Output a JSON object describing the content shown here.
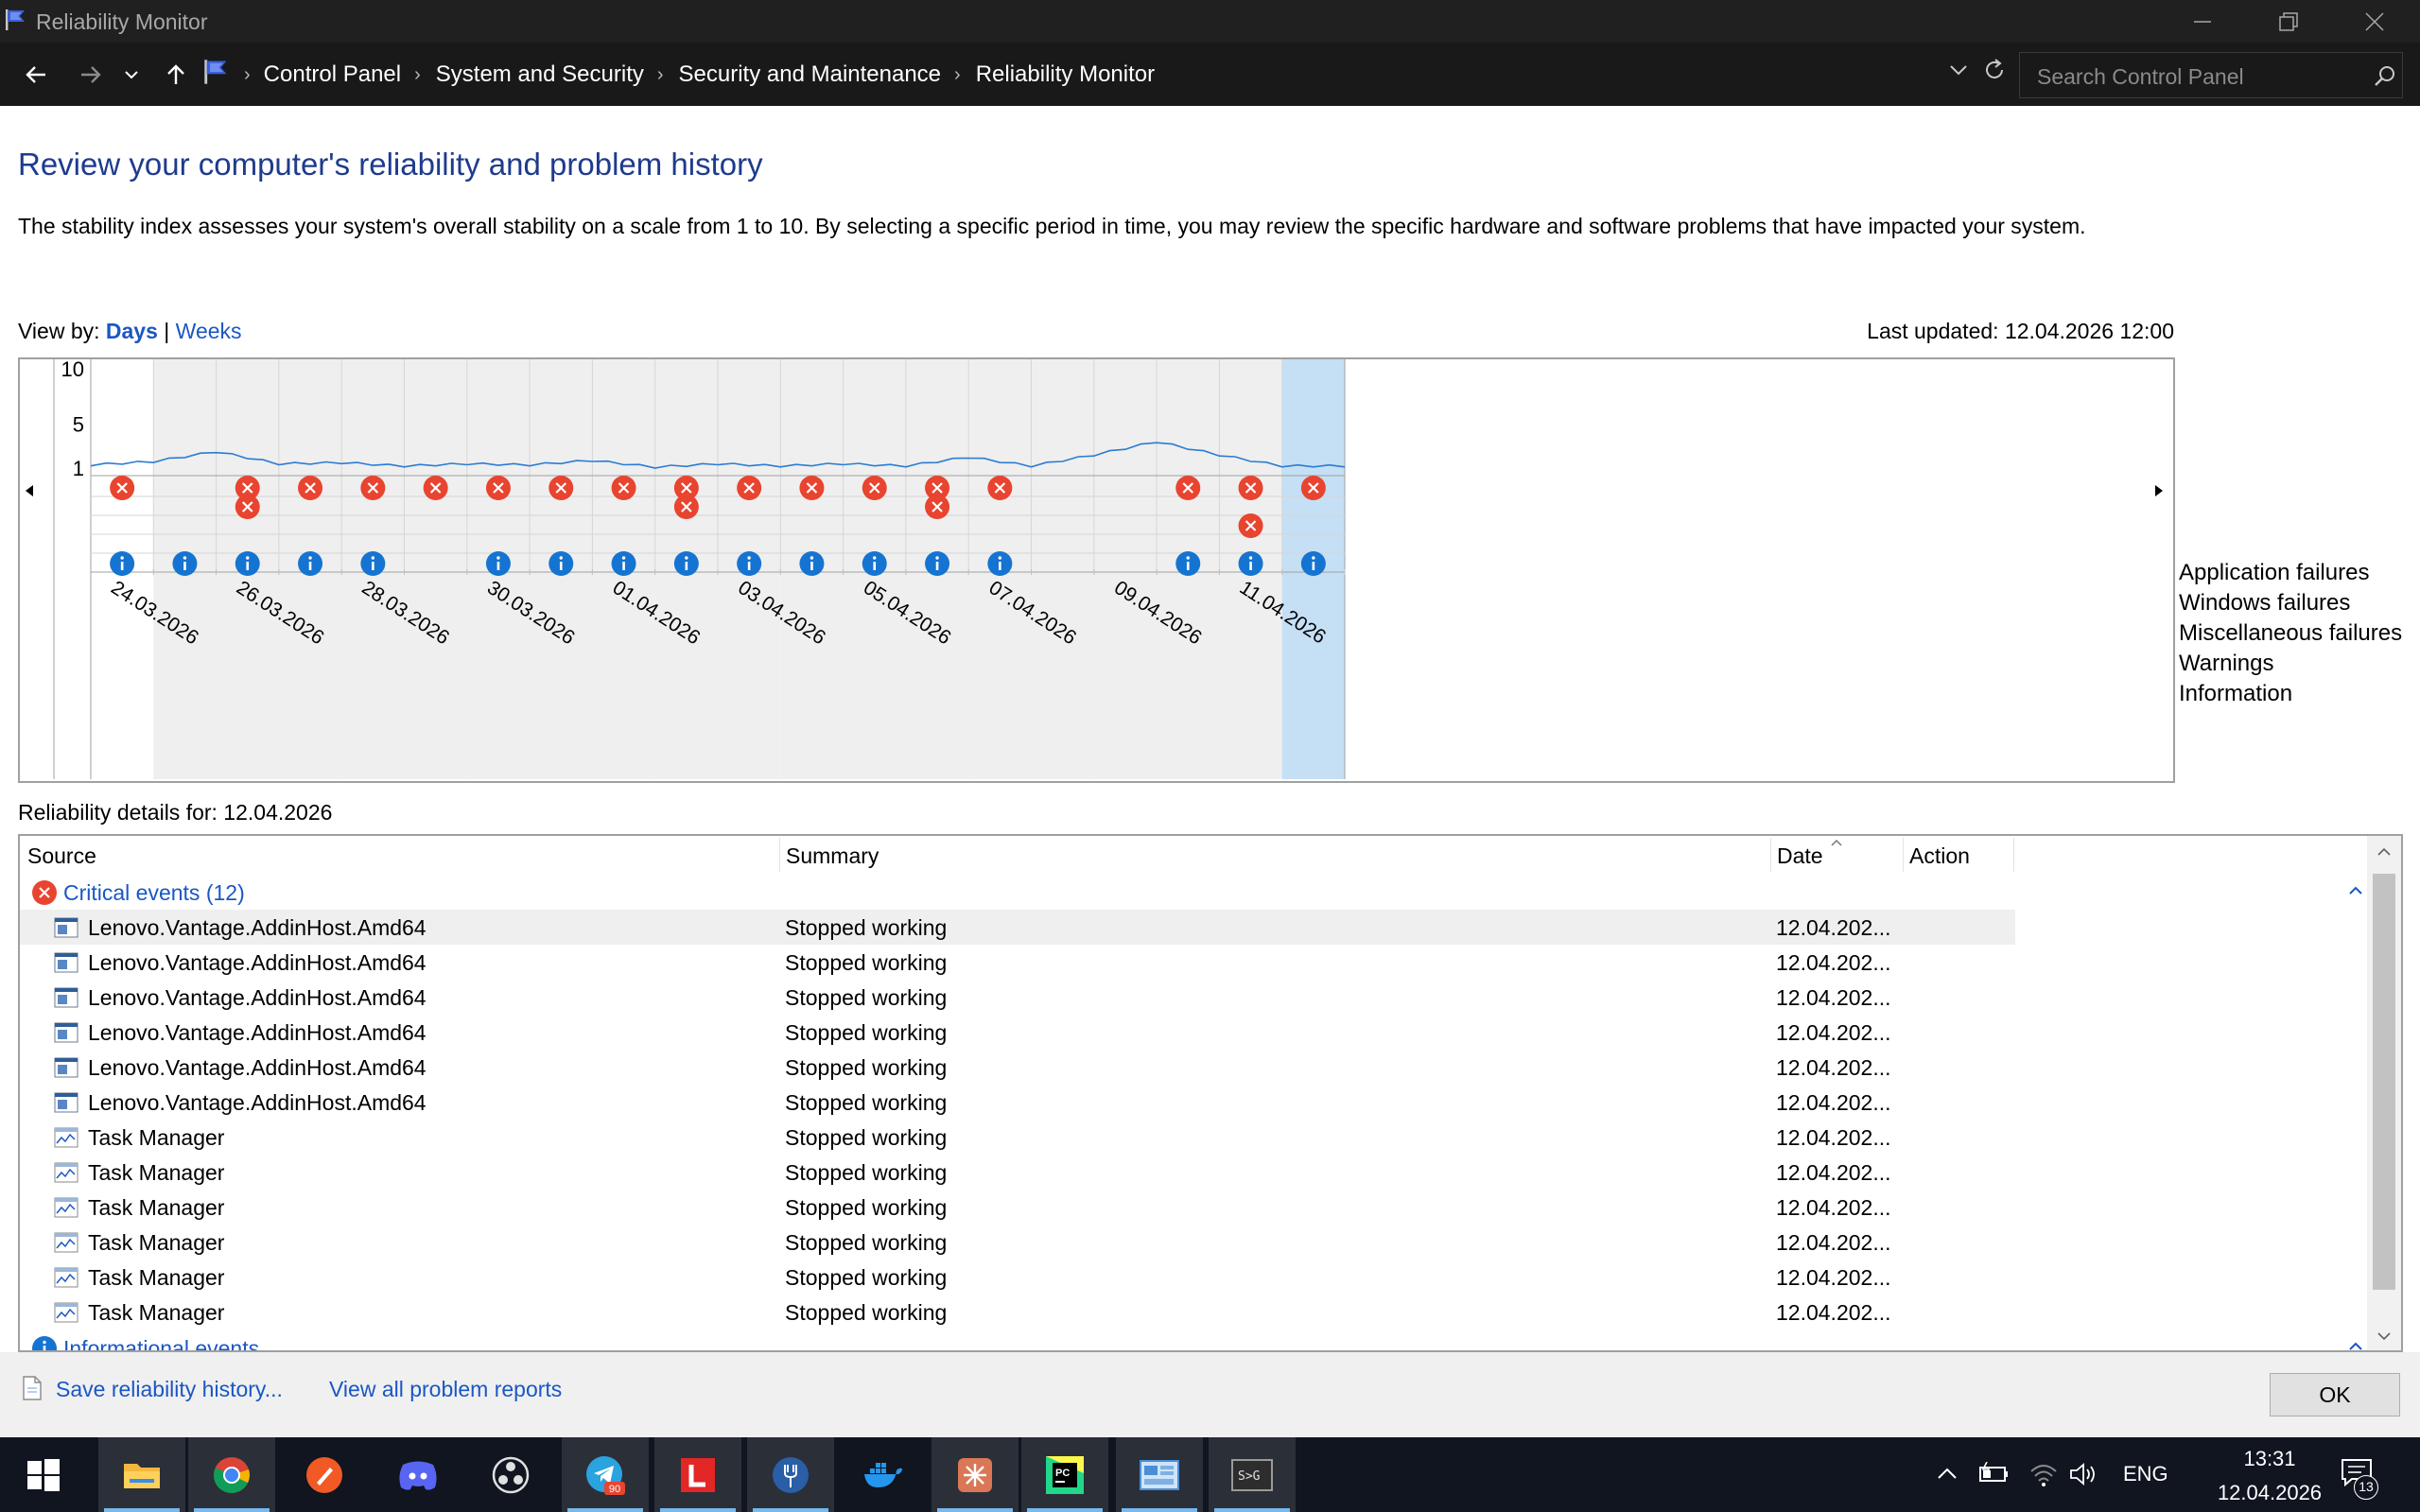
{
  "window": {
    "title": "Reliability Monitor"
  },
  "address_bar": {
    "breadcrumb": [
      "Control Panel",
      "System and Security",
      "Security and Maintenance",
      "Reliability Monitor"
    ],
    "search_placeholder": "Search Control Panel"
  },
  "main": {
    "heading": "Review your computer's reliability and problem history",
    "description": "The stability index assesses your system's overall stability on a scale from 1 to 10. By selecting a specific period in time, you may review the specific hardware and software problems that have impacted your system.",
    "view_by_label": "View by:",
    "view_days": "Days",
    "view_separator": "|",
    "view_weeks": "Weeks",
    "last_updated": "Last updated: 12.04.2026 12:00"
  },
  "chart_data": {
    "type": "line",
    "y_ticks": [
      "10",
      "5",
      "1"
    ],
    "ylim": [
      1,
      10
    ],
    "row_labels": [
      "Application failures",
      "Windows failures",
      "Miscellaneous failures",
      "Warnings",
      "Information"
    ],
    "x_tick_labels": [
      "24.03.2026",
      "26.03.2026",
      "28.03.2026",
      "30.03.2026",
      "01.04.2026",
      "03.04.2026",
      "05.04.2026",
      "07.04.2026",
      "09.04.2026",
      "11.04.2026"
    ],
    "days": [
      "24.03.2026",
      "25.03.2026",
      "26.03.2026",
      "27.03.2026",
      "28.03.2026",
      "29.03.2026",
      "30.03.2026",
      "31.03.2026",
      "01.04.2026",
      "02.04.2026",
      "03.04.2026",
      "04.04.2026",
      "05.04.2026",
      "06.04.2026",
      "07.04.2026",
      "08.04.2026",
      "09.04.2026",
      "10.04.2026",
      "11.04.2026",
      "12.04.2026"
    ],
    "selected_day": "12.04.2026",
    "stability_index": [
      1.2,
      1.5,
      2.4,
      1.3,
      1.4,
      1.1,
      1.3,
      1.2,
      1.6,
      1.0,
      1.3,
      1.1,
      1.3,
      1.1,
      1.9,
      1.1,
      2.1,
      3.3,
      2.1,
      1.1
    ],
    "application_failures": [
      1,
      0,
      1,
      1,
      1,
      1,
      1,
      1,
      1,
      1,
      1,
      1,
      1,
      1,
      1,
      0,
      0,
      1,
      1,
      1
    ],
    "windows_failures": [
      0,
      0,
      1,
      0,
      0,
      0,
      0,
      0,
      0,
      1,
      0,
      0,
      0,
      1,
      0,
      0,
      0,
      0,
      0,
      0
    ],
    "misc_failures": [
      0,
      0,
      0,
      0,
      0,
      0,
      0,
      0,
      0,
      0,
      0,
      0,
      0,
      0,
      0,
      0,
      0,
      0,
      1,
      0
    ],
    "warnings": [
      0,
      0,
      0,
      0,
      0,
      0,
      0,
      0,
      0,
      0,
      0,
      0,
      0,
      0,
      0,
      0,
      0,
      0,
      0,
      0
    ],
    "information": [
      1,
      1,
      1,
      1,
      1,
      0,
      1,
      1,
      1,
      1,
      1,
      1,
      1,
      1,
      1,
      0,
      0,
      1,
      1,
      1
    ]
  },
  "details": {
    "title": "Reliability details for: 12.04.2026",
    "columns": [
      "Source",
      "Summary",
      "Date",
      "Action"
    ],
    "critical_group": "Critical events (12)",
    "info_group": "Informational events",
    "rows": [
      {
        "source": "Lenovo.Vantage.AddinHost.Amd64",
        "summary": "Stopped working",
        "date": "12.04.202...",
        "icon": "app-window-icon"
      },
      {
        "source": "Lenovo.Vantage.AddinHost.Amd64",
        "summary": "Stopped working",
        "date": "12.04.202...",
        "icon": "app-window-icon"
      },
      {
        "source": "Lenovo.Vantage.AddinHost.Amd64",
        "summary": "Stopped working",
        "date": "12.04.202...",
        "icon": "app-window-icon"
      },
      {
        "source": "Lenovo.Vantage.AddinHost.Amd64",
        "summary": "Stopped working",
        "date": "12.04.202...",
        "icon": "app-window-icon"
      },
      {
        "source": "Lenovo.Vantage.AddinHost.Amd64",
        "summary": "Stopped working",
        "date": "12.04.202...",
        "icon": "app-window-icon"
      },
      {
        "source": "Lenovo.Vantage.AddinHost.Amd64",
        "summary": "Stopped working",
        "date": "12.04.202...",
        "icon": "app-window-icon"
      },
      {
        "source": "Task Manager",
        "summary": "Stopped working",
        "date": "12.04.202...",
        "icon": "task-manager-icon"
      },
      {
        "source": "Task Manager",
        "summary": "Stopped working",
        "date": "12.04.202...",
        "icon": "task-manager-icon"
      },
      {
        "source": "Task Manager",
        "summary": "Stopped working",
        "date": "12.04.202...",
        "icon": "task-manager-icon"
      },
      {
        "source": "Task Manager",
        "summary": "Stopped working",
        "date": "12.04.202...",
        "icon": "task-manager-icon"
      },
      {
        "source": "Task Manager",
        "summary": "Stopped working",
        "date": "12.04.202...",
        "icon": "task-manager-icon"
      },
      {
        "source": "Task Manager",
        "summary": "Stopped working",
        "date": "12.04.202...",
        "icon": "task-manager-icon"
      }
    ]
  },
  "footer": {
    "save_link": "Save reliability history...",
    "problems_link": "View all problem reports",
    "ok_button": "OK"
  },
  "taskbar": {
    "apps": [
      "start-icon",
      "file-explorer-icon",
      "chrome-icon",
      "pen-tool-icon",
      "discord-icon",
      "obs-icon",
      "telegram-icon",
      "lingvo-icon",
      "fork-icon",
      "docker-icon",
      "claude-icon",
      "pycharm-icon",
      "control-panel-icon",
      "terminal-icon"
    ],
    "telegram_badge": "90",
    "language": "ENG",
    "time": "13:31",
    "date": "12.04.2026",
    "notifications": "13"
  },
  "colors": {
    "accent_blue": "#1a57c4",
    "heading_blue": "#1e3b8d",
    "error_red": "#e8442f",
    "info_blue": "#1574d1",
    "selected_column": "#c5dff5",
    "line_blue": "#2b7cd3"
  }
}
